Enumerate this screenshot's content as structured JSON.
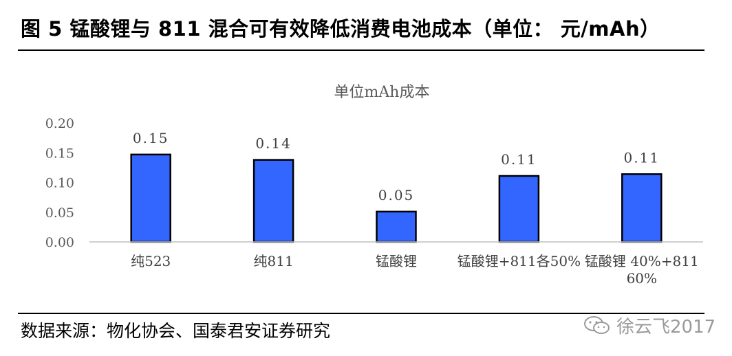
{
  "figure": {
    "title": "图 5 锰酸锂与 811 混合可有效降低消费电池成本（单位： 元/mAh）",
    "source": "数据来源：物化协会、国泰君安证券研究",
    "watermark": "徐云飞2017",
    "watermark_icon": "wechat-icon"
  },
  "chart_data": {
    "type": "bar",
    "title": "单位mAh成本",
    "xlabel": "",
    "ylabel": "",
    "categories": [
      "纯523",
      "纯811",
      "锰酸锂",
      "锰酸锂+811各50%",
      "锰酸锂 40%+811 60%"
    ],
    "category_lines": [
      [
        "纯523"
      ],
      [
        "纯811"
      ],
      [
        "锰酸锂"
      ],
      [
        "锰酸锂+811各50%"
      ],
      [
        "锰酸锂 40%+811",
        "60%"
      ]
    ],
    "values": [
      0.147,
      0.138,
      0.051,
      0.111,
      0.114
    ],
    "data_labels": [
      "0.15",
      "0.14",
      "0.05",
      "0.11",
      "0.11"
    ],
    "yticks": [
      "0.00",
      "0.05",
      "0.10",
      "0.15",
      "0.20"
    ],
    "ylim": [
      0,
      0.2
    ],
    "grid": false,
    "legend": "none",
    "bar_color": "#3366ff",
    "bar_edge_color": "#000000"
  }
}
